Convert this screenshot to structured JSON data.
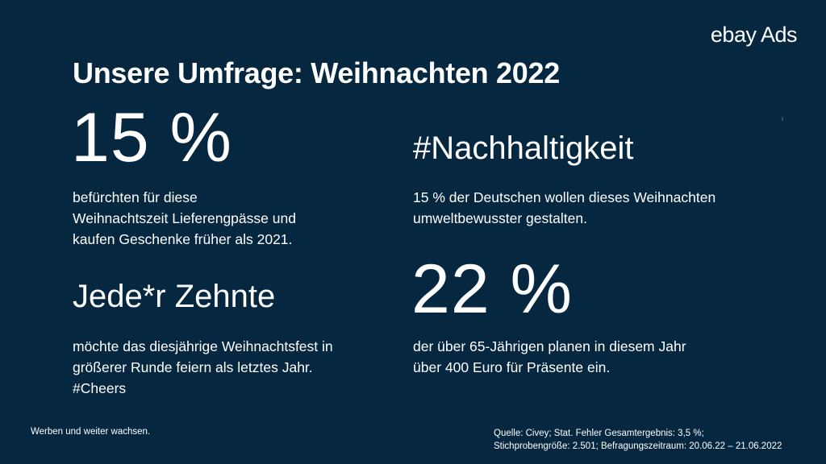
{
  "brand": {
    "logo": "ebay Ads"
  },
  "title": "Unsere Umfrage: Weihnachten 2022",
  "left": {
    "stat1": {
      "value": "15 %",
      "text": [
        "befürchten für diese",
        "Weihnachtszeit Lieferengpässe und",
        "kaufen Geschenke früher als 2021."
      ]
    },
    "stat2": {
      "value": "Jede*r Zehnte",
      "text": [
        "möchte das diesjährige Weihnachtsfest in",
        "größerer Runde feiern als letztes Jahr.",
        "#Cheers"
      ]
    }
  },
  "right": {
    "stat1": {
      "value": "#Nachhaltigkeit",
      "text": [
        "15 % der Deutschen wollen dieses Weihnachten",
        "umweltbewusster gestalten."
      ]
    },
    "stat2": {
      "value": "22 %",
      "text": [
        "der über 65-Jährigen planen in diesem Jahr",
        "über 400 Euro für Präsente ein."
      ]
    }
  },
  "footer": {
    "tagline": "Werben und weiter wachsen.",
    "source": [
      "Quelle: Civey;  Stat. Fehler Gesamtergebnis: 3,5 %;",
      "Stichprobengröße: 2.501;  Befragungszeitraum: 20.06.22 – 21.06.2022"
    ]
  }
}
